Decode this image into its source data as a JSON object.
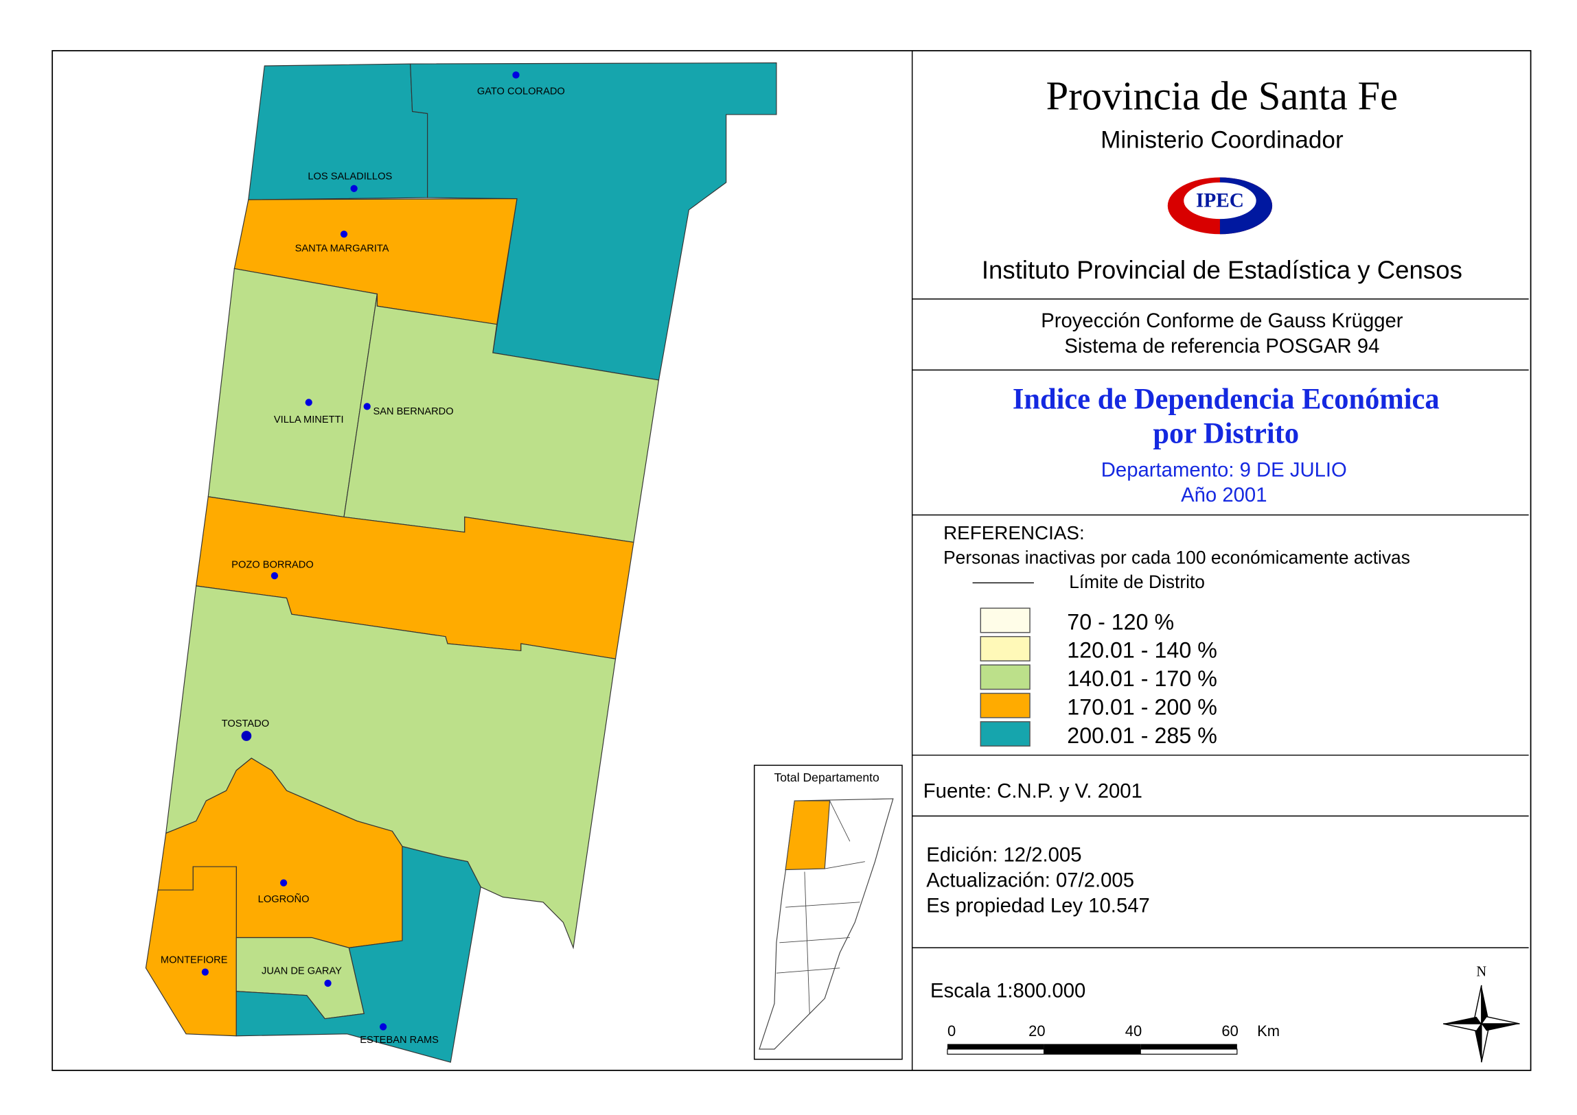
{
  "header": {
    "title": "Provincia de Santa Fe",
    "subtitle": "Ministerio Coordinador",
    "logo": "IPEC",
    "institute": "Instituto Provincial de Estadística y Censos"
  },
  "projection": [
    "Proyección Conforme de Gauss Krügger",
    "Sistema de referencia POSGAR 94"
  ],
  "map_title": {
    "lines": [
      "Indice de Dependencia Económica",
      "por Distrito"
    ],
    "department": "Departamento:  9 DE JULIO",
    "year": "Año 2001"
  },
  "references": {
    "title": "REFERENCIAS:",
    "description": "Personas inactivas por cada 100 económicamente activas",
    "boundary": "Límite de  Distrito",
    "items": [
      {
        "label": "70 - 120 %",
        "color": "#fffde8"
      },
      {
        "label": "120.01 - 140 %",
        "color": "#fff9b8"
      },
      {
        "label": "140.01 - 170 %",
        "color": "#bce08a"
      },
      {
        "label": "170.01 - 200 %",
        "color": "#ffab00"
      },
      {
        "label": "200.01 - 285 %",
        "color": "#16a5ad"
      }
    ]
  },
  "source": "Fuente:  C.N.P. y V. 2001",
  "edition": [
    "Edición:  12/2.005",
    "Actualización:  07/2.005",
    "Es propiedad Ley 10.547"
  ],
  "scale": {
    "text": "Escala 1:800.000",
    "ticks": [
      0,
      20,
      40,
      60
    ],
    "unit": "Km"
  },
  "north": "N",
  "inset_title": "Total Departamento",
  "districts": [
    "GATO COLORADO",
    "LOS SALADILLOS",
    "SANTA MARGARITA",
    "VILLA MINETTI",
    "SAN BERNARDO",
    "POZO BORRADO",
    "TOSTADO",
    "LOGROÑO",
    "MONTEFIORE",
    "JUAN DE GARAY",
    "ESTEBAN RAMS"
  ]
}
